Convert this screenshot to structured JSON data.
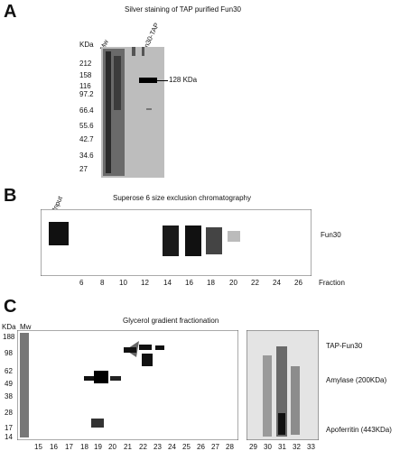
{
  "panel_a": {
    "letter": "A",
    "title": "Silver staining of TAP purified Fun30",
    "unit_label": "KDa",
    "lane_labels": [
      "Mw",
      "Fun30-TAP"
    ],
    "markers": [
      "212",
      "158",
      "116",
      "97.2",
      "66.4",
      "55.6",
      "42.7",
      "34.6",
      "27"
    ],
    "band_label": "128 KDa"
  },
  "panel_b": {
    "letter": "B",
    "title": "Superose 6 size exclusion chromatography",
    "input_label": "Input",
    "band_label": "Fun30",
    "fractions": [
      "6",
      "8",
      "10",
      "12",
      "14",
      "16",
      "18",
      "20",
      "22",
      "24",
      "26"
    ],
    "fraction_label": "Fraction"
  },
  "panel_c": {
    "letter": "C",
    "title": "Glycerol gradient fractionation",
    "unit_label": "KDa",
    "mw_label": "Mw",
    "markers": [
      "188",
      "98",
      "62",
      "49",
      "38",
      "28",
      "17",
      "14"
    ],
    "fractions_left": [
      "15",
      "16",
      "17",
      "18",
      "19",
      "20",
      "21",
      "22",
      "23",
      "24",
      "25",
      "26",
      "27",
      "28"
    ],
    "fractions_right": [
      "29",
      "30",
      "31",
      "32",
      "33"
    ],
    "labels": [
      "TAP-Fun30",
      "Amylase (200KDa)",
      "Apoferritin (443KDa)"
    ]
  }
}
